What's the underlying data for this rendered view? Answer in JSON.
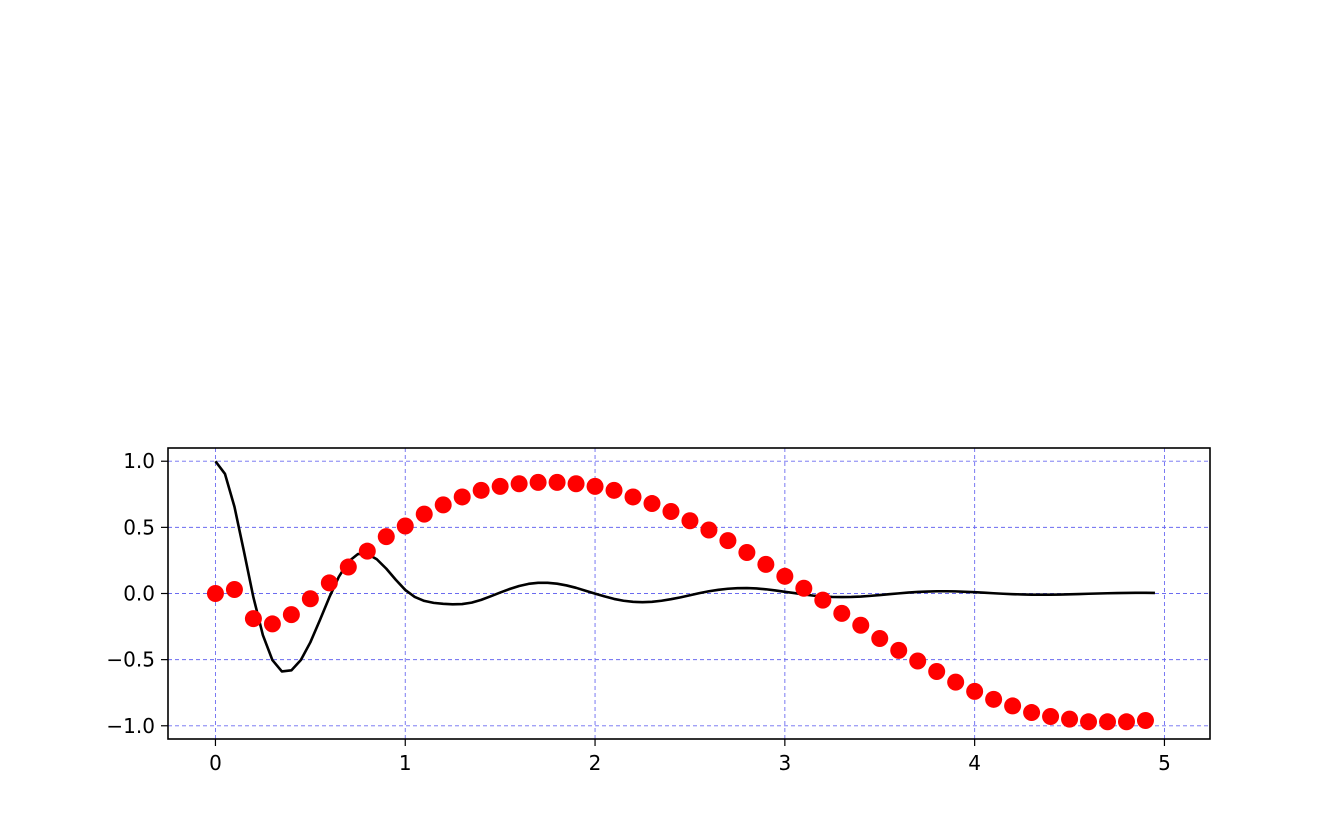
{
  "chart_data": {
    "type": "line",
    "title": "",
    "xlabel": "",
    "ylabel": "",
    "xlim": [
      -0.25,
      5.24
    ],
    "ylim": [
      -1.1,
      1.1
    ],
    "x_ticks": [
      0,
      1,
      2,
      3,
      4,
      5
    ],
    "x_tick_labels": [
      "0",
      "1",
      "2",
      "3",
      "4",
      "5"
    ],
    "y_ticks": [
      1.0,
      0.5,
      0.0,
      -0.5,
      -1.0
    ],
    "y_tick_labels": [
      "1.0",
      "0.5",
      "0.0",
      "−0.5",
      "−1.0"
    ],
    "grid": true,
    "grid_color": "#6b6bf0",
    "legend": "none",
    "series": [
      {
        "kind": "scatter",
        "color": "#ff0000",
        "x": [
          0.0,
          0.1,
          0.2,
          0.3,
          0.4,
          0.5,
          0.6,
          0.7,
          0.8,
          0.9,
          1.0,
          1.1,
          1.2,
          1.3,
          1.4,
          1.5,
          1.6,
          1.7,
          1.8,
          1.9,
          2.0,
          2.1,
          2.2,
          2.3,
          2.4,
          2.5,
          2.6,
          2.7,
          2.8,
          2.9,
          3.0,
          3.1,
          3.2,
          3.3,
          3.4,
          3.5,
          3.6,
          3.7,
          3.8,
          3.9,
          4.0,
          4.1,
          4.2,
          4.3,
          4.4,
          4.5,
          4.6,
          4.7,
          4.8,
          4.9
        ],
        "y": [
          0.0,
          0.03,
          -0.19,
          -0.23,
          -0.16,
          -0.04,
          0.08,
          0.2,
          0.32,
          0.43,
          0.51,
          0.6,
          0.67,
          0.73,
          0.78,
          0.81,
          0.83,
          0.84,
          0.84,
          0.83,
          0.81,
          0.78,
          0.73,
          0.68,
          0.62,
          0.55,
          0.48,
          0.4,
          0.31,
          0.22,
          0.13,
          0.04,
          -0.05,
          -0.15,
          -0.24,
          -0.34,
          -0.43,
          -0.51,
          -0.59,
          -0.67,
          -0.74,
          -0.8,
          -0.85,
          -0.9,
          -0.93,
          -0.95,
          -0.97,
          -0.97,
          -0.97,
          -0.96
        ]
      },
      {
        "kind": "line",
        "color": "#000000",
        "x": [
          0.0,
          0.05,
          0.1,
          0.15,
          0.2,
          0.25,
          0.3,
          0.35,
          0.4,
          0.45,
          0.5,
          0.55,
          0.6,
          0.65,
          0.7,
          0.75,
          0.8,
          0.85,
          0.9,
          0.95,
          1.0,
          1.05,
          1.1,
          1.15,
          1.2,
          1.25,
          1.3,
          1.35,
          1.4,
          1.45,
          1.5,
          1.55,
          1.6,
          1.65,
          1.7,
          1.75,
          1.8,
          1.85,
          1.9,
          1.95,
          2.0,
          2.05,
          2.1,
          2.15,
          2.2,
          2.25,
          2.3,
          2.35,
          2.4,
          2.45,
          2.5,
          2.55,
          2.6,
          2.65,
          2.7,
          2.75,
          2.8,
          2.85,
          2.9,
          2.95,
          3.0,
          3.05,
          3.1,
          3.15,
          3.2,
          3.25,
          3.3,
          3.35,
          3.4,
          3.45,
          3.5,
          3.55,
          3.6,
          3.65,
          3.7,
          3.75,
          3.8,
          3.85,
          3.9,
          3.95,
          4.0,
          4.05,
          4.1,
          4.15,
          4.2,
          4.25,
          4.3,
          4.35,
          4.4,
          4.45,
          4.5,
          4.55,
          4.6,
          4.65,
          4.7,
          4.75,
          4.8,
          4.85,
          4.9,
          4.95
        ],
        "y": [
          1.0,
          0.905,
          0.657,
          0.319,
          -0.029,
          -0.315,
          -0.503,
          -0.589,
          -0.581,
          -0.503,
          -0.369,
          -0.202,
          -0.029,
          0.126,
          0.24,
          0.298,
          0.3,
          0.259,
          0.188,
          0.104,
          0.027,
          -0.026,
          -0.056,
          -0.071,
          -0.078,
          -0.082,
          -0.08,
          -0.069,
          -0.048,
          -0.021,
          0.007,
          0.034,
          0.057,
          0.073,
          0.081,
          0.081,
          0.074,
          0.061,
          0.043,
          0.021,
          -0.001,
          -0.022,
          -0.041,
          -0.055,
          -0.063,
          -0.066,
          -0.063,
          -0.055,
          -0.043,
          -0.029,
          -0.013,
          0.003,
          0.017,
          0.028,
          0.036,
          0.04,
          0.041,
          0.038,
          0.032,
          0.023,
          0.013,
          0.003,
          -0.007,
          -0.016,
          -0.022,
          -0.026,
          -0.027,
          -0.026,
          -0.023,
          -0.018,
          -0.012,
          -0.005,
          0.001,
          0.007,
          0.012,
          0.015,
          0.017,
          0.017,
          0.016,
          0.013,
          0.01,
          0.006,
          0.002,
          -0.002,
          -0.005,
          -0.007,
          -0.009,
          -0.009,
          -0.009,
          -0.008,
          -0.006,
          -0.004,
          -0.002,
          0.0,
          0.002,
          0.003,
          0.004,
          0.005,
          0.005,
          0.004
        ]
      }
    ]
  }
}
